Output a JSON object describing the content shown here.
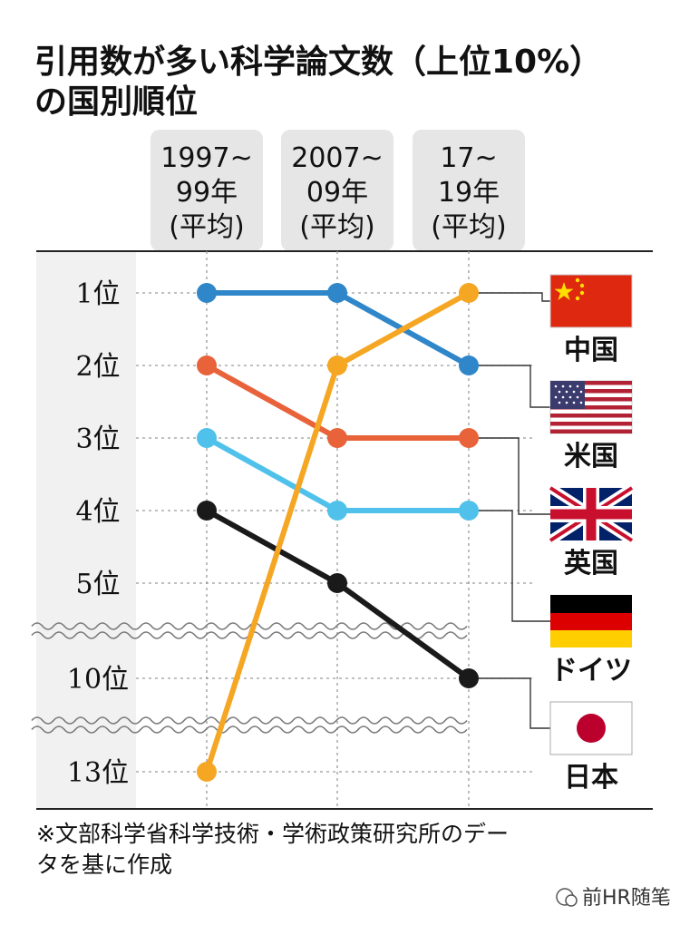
{
  "chart_data": {
    "type": "line",
    "title_line1": "引用数が多い科学論文数（上位10%）",
    "title_line2": "の国別順位",
    "periods": [
      {
        "line1": "1997~",
        "line2": "99年",
        "line3": "(平均)"
      },
      {
        "line1": "2007~",
        "line2": "09年",
        "line3": "(平均)"
      },
      {
        "line1": "17~",
        "line2": "19年",
        "line3": "(平均)"
      }
    ],
    "rank_labels": [
      "1位",
      "2位",
      "3位",
      "4位",
      "5位",
      "10位",
      "13位"
    ],
    "rank_levels": [
      1,
      2,
      3,
      4,
      5,
      10,
      13
    ],
    "series": [
      {
        "name": "中国",
        "color": "#f5a623",
        "values": [
          13,
          2,
          1
        ],
        "flag": "china-flag"
      },
      {
        "name": "米国",
        "color": "#2f86c9",
        "values": [
          1,
          1,
          2
        ],
        "flag": "usa-flag"
      },
      {
        "name": "英国",
        "color": "#e8623a",
        "values": [
          2,
          3,
          3
        ],
        "flag": "uk-flag"
      },
      {
        "name": "ドイツ",
        "color": "#4fc1ea",
        "values": [
          3,
          4,
          4
        ],
        "flag": "germany-flag"
      },
      {
        "name": "日本",
        "color": "#1a1a1a",
        "values": [
          4,
          5,
          10
        ],
        "flag": "japan-flag"
      }
    ],
    "axis_breaks": [
      [
        5,
        10
      ],
      [
        10,
        13
      ]
    ],
    "y_order": "rank ascending downward"
  },
  "footnote_line1": "※文部科学省科学技術・学術政策研究所のデー",
  "footnote_line2": "タを基に作成",
  "watermark": "前HR随笔",
  "colors": {
    "panel_bg": "#f1f1f1",
    "header_bg": "#e6e6e6",
    "grid": "#9a9a9a"
  }
}
